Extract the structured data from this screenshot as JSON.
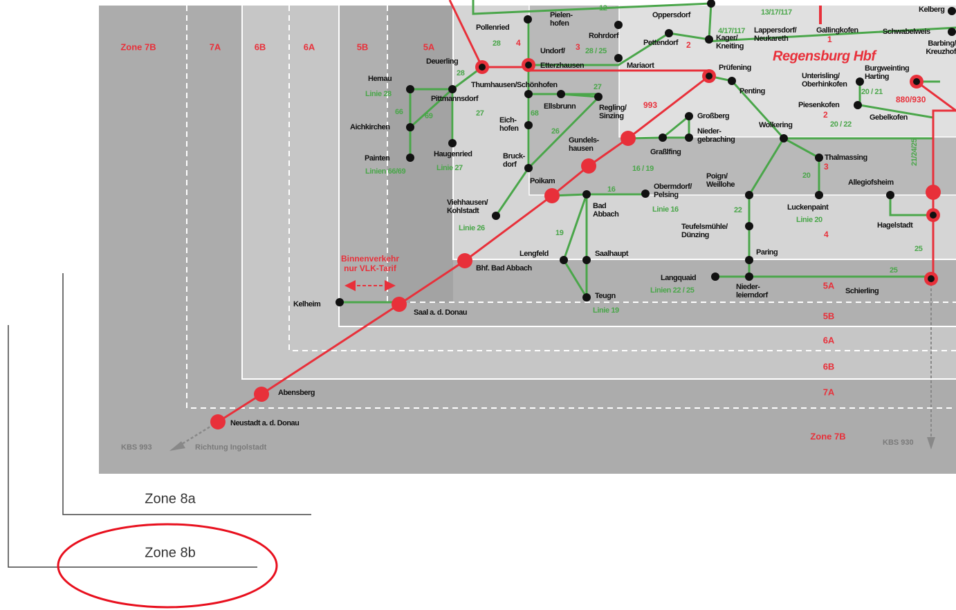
{
  "zones_top": [
    "Zone 7B",
    "7A",
    "6B",
    "6A",
    "5B",
    "5A"
  ],
  "zones_right": [
    "5A",
    "5B",
    "6A",
    "6B",
    "7A",
    "Zone 7B"
  ],
  "hub": "Regensburg Hbf",
  "stations": [
    [
      "Pollenried"
    ],
    [
      "Pielen-",
      "hofen"
    ],
    [
      "Rohrdorf"
    ],
    [
      "Oppersdorf"
    ],
    [
      "Pettendorf"
    ],
    [
      "Undorf/"
    ],
    [
      "Etterzhausen"
    ],
    [
      "Mariaort"
    ],
    [
      "Deuerling"
    ],
    [
      "Hemau"
    ],
    [
      "Pittmannsdorf"
    ],
    [
      "Thumhausen/Schönhofen"
    ],
    [
      "Ellsbrunn"
    ],
    [
      "Regling/",
      "Sinzing"
    ],
    [
      "Aichkirchen"
    ],
    [
      "Eich-",
      "hofen"
    ],
    [
      "Painten"
    ],
    [
      "Haugenried"
    ],
    [
      "Bruck-",
      "dorf"
    ],
    [
      "Gundels-",
      "hausen"
    ],
    [
      "Poikam"
    ],
    [
      "Viehhausen/",
      "Kohlstadt"
    ],
    [
      "Bad",
      "Abbach"
    ],
    [
      "Kager/",
      "Kneiting"
    ],
    [
      "Prüfening"
    ],
    [
      "Penting"
    ],
    [
      "Lappersdorf/",
      "Neukareth"
    ],
    [
      "Gallingkofen"
    ],
    [
      "Schwabelweis"
    ],
    [
      "Barbing/",
      "Kreuzhof"
    ],
    [
      "Kelberg"
    ],
    [
      "Unterisling/",
      "Oberhinkofen"
    ],
    [
      "Burgweinting",
      "Harting"
    ],
    [
      "Piesenkofen"
    ],
    [
      "Gebelkofen"
    ],
    [
      "Großberg"
    ],
    [
      "Nieder-",
      "gebraching"
    ],
    [
      "Graßlfing"
    ],
    [
      "Wolkering"
    ],
    [
      "Thalmassing"
    ],
    [
      "Poign/",
      "Weillohe"
    ],
    [
      "Obermdorf/",
      "Pelsing"
    ],
    [
      "Allegiofsheim"
    ],
    [
      "Luckenpaint"
    ],
    [
      "Hagelstadt"
    ],
    [
      "Teufelsmühle/",
      "Dünzing"
    ],
    [
      "Paring"
    ],
    [
      "Lengfeld"
    ],
    [
      "Saalhaupt"
    ],
    [
      "Bhf. Bad Abbach"
    ],
    [
      "Langquaid"
    ],
    [
      "Nieder-",
      "leierndorf"
    ],
    [
      "Schierling"
    ],
    [
      "Teugn"
    ],
    [
      "Kelheim"
    ],
    [
      "Saal a. d. Donau"
    ],
    [
      "Abensberg"
    ],
    [
      "Neustadt a. d. Donau"
    ]
  ],
  "route_numbers": [
    "12",
    "28",
    "28 / 25",
    "13/17/117",
    "4/17/117",
    "28",
    "Linie 28",
    "66",
    "69",
    "27",
    "68",
    "27",
    "26",
    "Linie 27",
    "Linien 66/69",
    "Linie 26",
    "16",
    "16 / 19",
    "Linie 16",
    "22",
    "20",
    "Linie 20",
    "19",
    "Linie 19",
    "Linien 22 / 25",
    "25",
    "25",
    "20 / 21",
    "20 / 22",
    "21/24/25"
  ],
  "zone_numbers": [
    "4",
    "3",
    "2",
    "1",
    "993",
    "2",
    "3",
    "4",
    "880/930"
  ],
  "notes": {
    "binnenverkehr": [
      "Binnenverkehr",
      "nur VLK-Tarif"
    ],
    "kbs_left": "KBS 993",
    "richtung": "Richtung Ingolstadt",
    "kbs_right": "KBS 930"
  },
  "annotations": [
    "Zone 8a",
    "Zone 8b"
  ]
}
